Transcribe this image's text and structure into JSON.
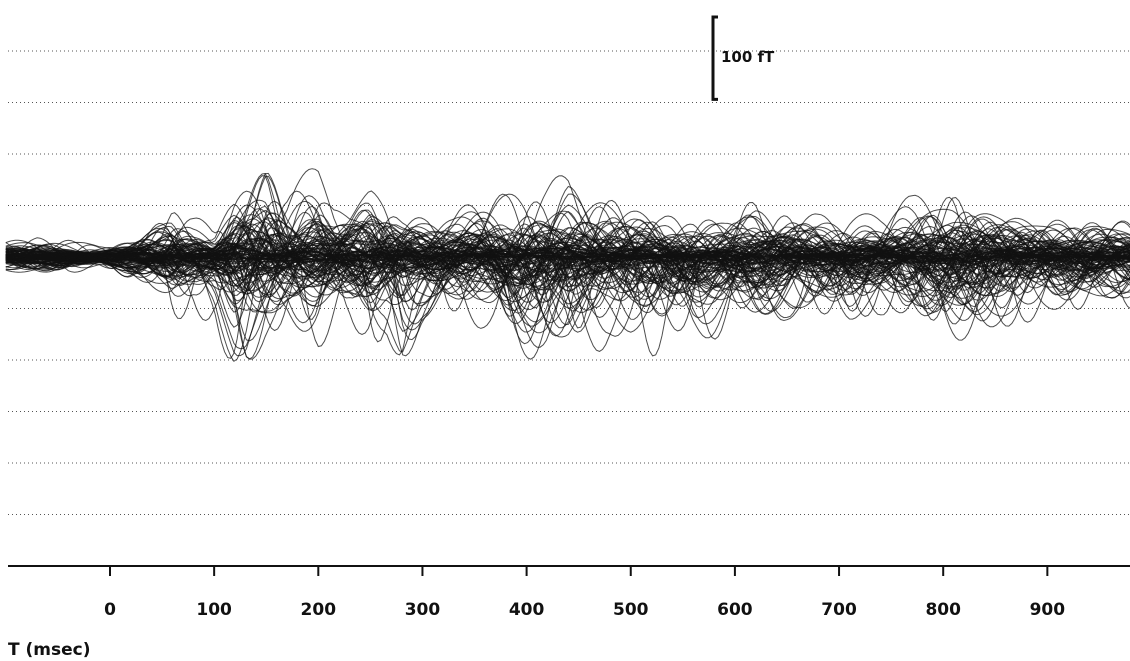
{
  "chart_data": {
    "type": "line",
    "description_style": "butterfly plot of overlaid MEG channel waveforms",
    "xlabel": "T (msec)",
    "xlim": [
      -100,
      990
    ],
    "x_ticks": [
      0,
      100,
      200,
      300,
      400,
      500,
      600,
      700,
      800,
      900
    ],
    "x_tick_labels": [
      "0",
      "100",
      "200",
      "300",
      "400",
      "500",
      "600",
      "700",
      "800",
      "900"
    ],
    "ylim": [
      -250,
      200
    ],
    "grid": {
      "horizontal_dotted": true,
      "spacing": 50
    },
    "scale_bar": {
      "value": 100,
      "label": "100 fT"
    },
    "envelope": {
      "x": [
        -100,
        -70,
        -40,
        -10,
        20,
        50,
        60,
        80,
        100,
        120,
        130,
        150,
        170,
        200,
        215,
        230,
        250,
        265,
        280,
        300,
        330,
        360,
        380,
        400,
        420,
        440,
        460,
        480,
        500,
        530,
        560,
        590,
        620,
        650,
        680,
        710,
        740,
        770,
        790,
        810,
        830,
        850,
        870,
        900,
        930,
        960,
        990
      ],
      "upper": [
        20,
        25,
        22,
        15,
        25,
        55,
        70,
        45,
        30,
        100,
        115,
        140,
        95,
        105,
        80,
        85,
        120,
        110,
        70,
        60,
        55,
        70,
        80,
        95,
        90,
        100,
        80,
        70,
        65,
        55,
        60,
        55,
        65,
        60,
        55,
        60,
        55,
        65,
        80,
        90,
        85,
        75,
        70,
        60,
        55,
        50,
        55
      ],
      "lower": [
        -20,
        -25,
        -30,
        -15,
        -35,
        -60,
        -70,
        -55,
        -70,
        -150,
        -160,
        -110,
        -90,
        -105,
        -95,
        -85,
        -105,
        -90,
        -130,
        -85,
        -80,
        -95,
        -120,
        -130,
        -150,
        -140,
        -105,
        -90,
        -105,
        -110,
        -120,
        -95,
        -90,
        -80,
        -85,
        -90,
        -75,
        -85,
        -100,
        -105,
        -110,
        -100,
        -95,
        -80,
        -75,
        -60,
        -65
      ]
    },
    "series_count": 120,
    "line_color": "#111111"
  }
}
